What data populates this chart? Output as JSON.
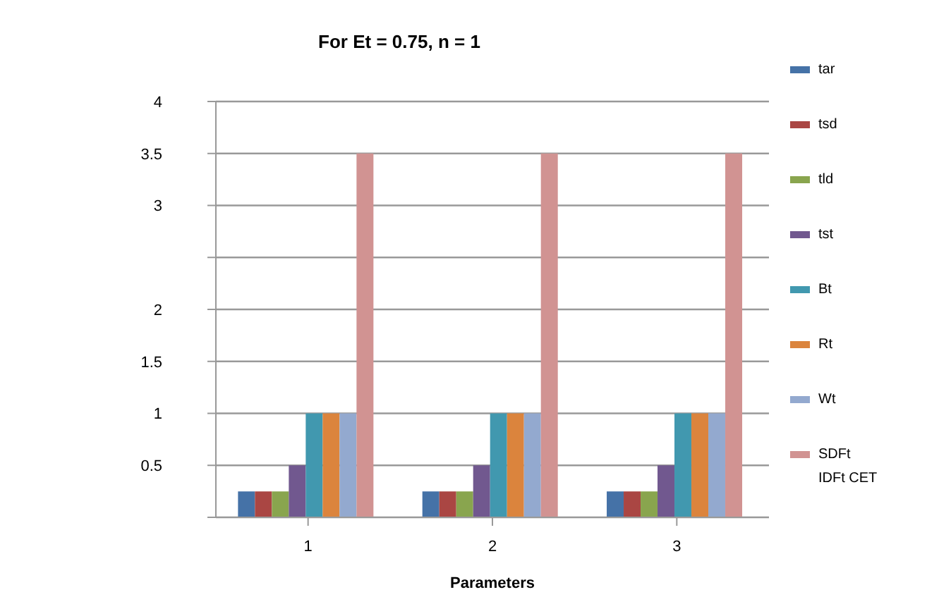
{
  "chart_data": {
    "type": "bar",
    "title": "For Et = 0.75,  n = 1",
    "xlabel": "Parameters",
    "categories": [
      "1",
      "2",
      "3"
    ],
    "series": [
      {
        "name": "tar",
        "color": "#4572a7",
        "values": [
          0.25,
          0.25,
          0.25
        ]
      },
      {
        "name": "tsd",
        "color": "#aa4643",
        "values": [
          0.25,
          0.25,
          0.25
        ]
      },
      {
        "name": "tld",
        "color": "#89a54e",
        "values": [
          0.25,
          0.25,
          0.25
        ]
      },
      {
        "name": "tst",
        "color": "#71588f",
        "values": [
          0.5,
          0.5,
          0.5
        ]
      },
      {
        "name": "Bt",
        "color": "#4198af",
        "values": [
          1,
          1,
          1
        ]
      },
      {
        "name": "Rt",
        "color": "#db843d",
        "values": [
          1,
          1,
          1
        ]
      },
      {
        "name": "Wt",
        "color": "#93a9cf",
        "values": [
          1,
          1,
          1
        ]
      },
      {
        "name": "SDFt",
        "color": "#d19392",
        "values": [
          3.5,
          3.5,
          3.5
        ]
      }
    ],
    "ylim": [
      0,
      4
    ],
    "yticks": [
      {
        "value": 0,
        "label": null
      },
      0.5,
      1,
      1.5,
      2,
      {
        "value": 2.5,
        "label": null
      },
      3,
      3.5,
      4
    ],
    "grid": "y",
    "legend": "right",
    "annotations": [
      "IDFt CET"
    ]
  }
}
